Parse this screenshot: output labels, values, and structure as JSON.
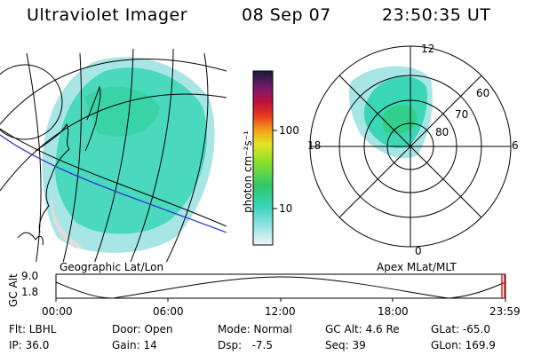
{
  "header": {
    "title": "Ultraviolet Imager",
    "date": "08 Sep 07",
    "time": "23:50:35 UT"
  },
  "colorbar": {
    "label": "photon cm⁻²s⁻¹",
    "ticks": [
      "100",
      "10"
    ]
  },
  "captions": {
    "left": "Geographic Lat/Lon",
    "right": "Apex MLat/MLT"
  },
  "polar": {
    "mlt_labels": {
      "top": "12",
      "left": "18",
      "right": "6",
      "bottom": "0"
    },
    "mlat_labels": [
      "60",
      "70",
      "80"
    ]
  },
  "orbit_plot": {
    "ylabel": "GC Alt",
    "yticks": [
      "9.0",
      "1.8"
    ],
    "xticks": [
      "00:00",
      "06:00",
      "12:00",
      "18:00",
      "23:59"
    ]
  },
  "info": {
    "row1": [
      "Flt: LBHL",
      "Door: Open",
      "Mode: Normal",
      "GC Alt: 4.6 Re",
      "GLat: -65.0"
    ],
    "row2": [
      "IP: 36.0",
      "Gain: 14",
      "Dsp:   -7.5",
      "Seq: 39",
      "GLon: 169.9"
    ]
  },
  "colors": {
    "auroral_main": "#3ad6b5",
    "auroral_light": "#a8e6e6",
    "orbit_track": "#2a2ad0",
    "marker": "#e02020"
  }
}
